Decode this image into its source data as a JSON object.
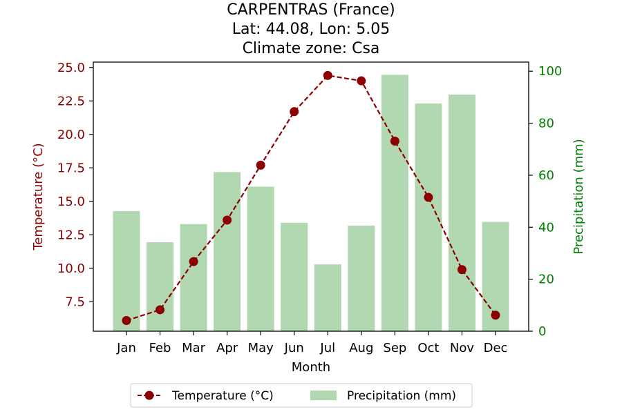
{
  "chart_data": {
    "type": "bar+line",
    "title_lines": [
      "CARPENTRAS (France)",
      "Lat: 44.08, Lon: 5.05",
      "Climate zone: Csa"
    ],
    "xlabel": "Month",
    "categories": [
      "Jan",
      "Feb",
      "Mar",
      "Apr",
      "May",
      "Jun",
      "Jul",
      "Aug",
      "Sep",
      "Oct",
      "Nov",
      "Dec"
    ],
    "temperature": {
      "name": "Temperature (°C)",
      "axis_label": "Temperature (°C)",
      "color": "#8b0000",
      "values": [
        6.1,
        6.9,
        10.5,
        13.6,
        17.7,
        21.7,
        24.4,
        24.0,
        19.5,
        15.3,
        9.9,
        6.5
      ],
      "ylim": [
        5.3,
        25.4
      ],
      "ticks": [
        7.5,
        10.0,
        12.5,
        15.0,
        17.5,
        20.0,
        22.5,
        25.0
      ],
      "tick_labels": [
        "7.5",
        "10.0",
        "12.5",
        "15.0",
        "17.5",
        "20.0",
        "22.5",
        "25.0"
      ]
    },
    "precipitation": {
      "name": "Precipitation (mm)",
      "axis_label": "Precipitation (mm)",
      "color": "#b2d8b2",
      "axis_color": "#008000",
      "values": [
        46.2,
        34.2,
        41.2,
        61.2,
        55.6,
        41.7,
        25.7,
        40.6,
        98.6,
        87.6,
        91.0,
        42.0
      ],
      "ylim": [
        0,
        103.5
      ],
      "ticks": [
        0,
        20,
        40,
        60,
        80,
        100
      ],
      "tick_labels": [
        "0",
        "20",
        "40",
        "60",
        "80",
        "100"
      ]
    },
    "legend_position": "bottom-center",
    "grid": false
  }
}
